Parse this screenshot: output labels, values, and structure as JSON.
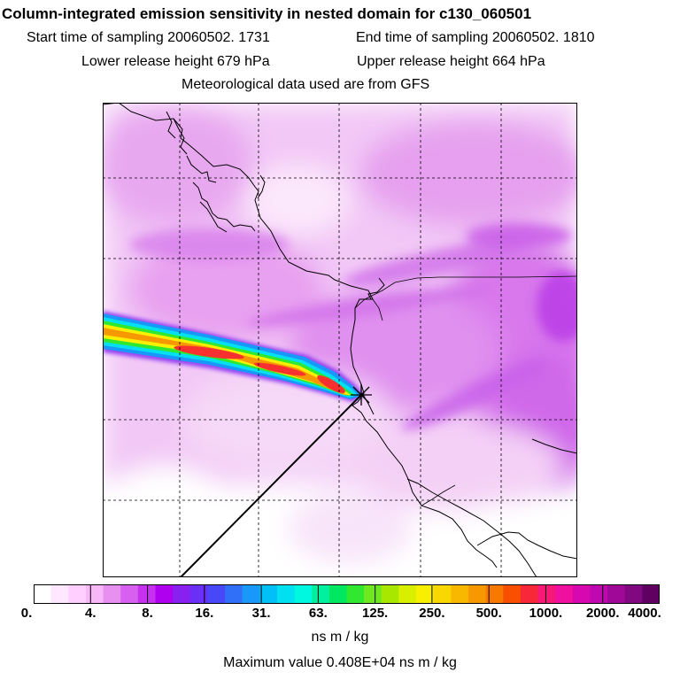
{
  "header": {
    "title": "Column-integrated emission sensitivity in nested domain for c130_060501",
    "start_label": "Start time of sampling 20060502.  1731",
    "end_label": "End time of sampling 20060502.  1810",
    "lower_label": "Lower release height  679 hPa",
    "upper_label": "Upper release height  664 hPa",
    "met_label": "Meteorological data used are from GFS"
  },
  "colorbar": {
    "tick_labels": [
      "0.",
      "4.",
      "8.",
      "16.",
      "31.",
      "63.",
      "125.",
      "250.",
      "500.",
      "1000.",
      "2000.",
      "4000."
    ],
    "colors": [
      "#ffffff",
      "#ffe8ff",
      "#ffd0ff",
      "#f8b8f8",
      "#e890f0",
      "#d860f0",
      "#c830f0",
      "#b000f0",
      "#8820f0",
      "#6a30f8",
      "#4848f8",
      "#3070f8",
      "#1898f8",
      "#00c0f8",
      "#00e0f0",
      "#00f8e0",
      "#00f0a0",
      "#00e860",
      "#30e830",
      "#70e820",
      "#a8e800",
      "#d8f000",
      "#f8f000",
      "#f8d800",
      "#f8b800",
      "#f89800",
      "#f87800",
      "#f85000",
      "#f82838",
      "#f81878",
      "#f010a0",
      "#d808b0",
      "#c008b0",
      "#a00898",
      "#800880",
      "#600060"
    ],
    "units": "ns m / kg",
    "max_value": "Maximum value  0.408E+04 ns m / kg"
  },
  "map": {
    "release_marker": "star-icon",
    "plume_colors": [
      "#d8f0ff",
      "#00e0f0",
      "#30e830",
      "#f8f000",
      "#f89800",
      "#f82838"
    ]
  }
}
